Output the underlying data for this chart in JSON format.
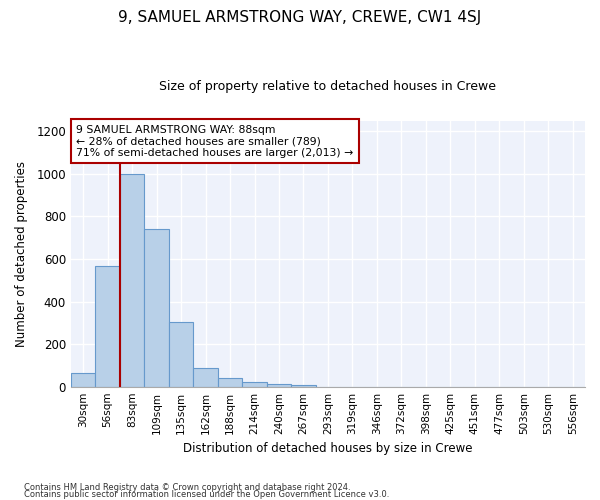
{
  "title": "9, SAMUEL ARMSTRONG WAY, CREWE, CW1 4SJ",
  "subtitle": "Size of property relative to detached houses in Crewe",
  "xlabel": "Distribution of detached houses by size in Crewe",
  "ylabel": "Number of detached properties",
  "categories": [
    "30sqm",
    "56sqm",
    "83sqm",
    "109sqm",
    "135sqm",
    "162sqm",
    "188sqm",
    "214sqm",
    "240sqm",
    "267sqm",
    "293sqm",
    "319sqm",
    "346sqm",
    "372sqm",
    "398sqm",
    "425sqm",
    "451sqm",
    "477sqm",
    "503sqm",
    "530sqm",
    "556sqm"
  ],
  "values": [
    62,
    565,
    1000,
    740,
    305,
    88,
    40,
    22,
    14,
    8,
    0,
    0,
    0,
    0,
    0,
    0,
    0,
    0,
    0,
    0,
    0
  ],
  "bar_color": "#b8d0e8",
  "bar_edge_color": "#6699cc",
  "vline_color": "#aa0000",
  "annotation_text": "9 SAMUEL ARMSTRONG WAY: 88sqm\n← 28% of detached houses are smaller (789)\n71% of semi-detached houses are larger (2,013) →",
  "annotation_box_color": "#ffffff",
  "annotation_box_edge": "#aa0000",
  "ylim": [
    0,
    1250
  ],
  "yticks": [
    0,
    200,
    400,
    600,
    800,
    1000,
    1200
  ],
  "bg_color": "#eef2fb",
  "footer1": "Contains HM Land Registry data © Crown copyright and database right 2024.",
  "footer2": "Contains public sector information licensed under the Open Government Licence v3.0."
}
